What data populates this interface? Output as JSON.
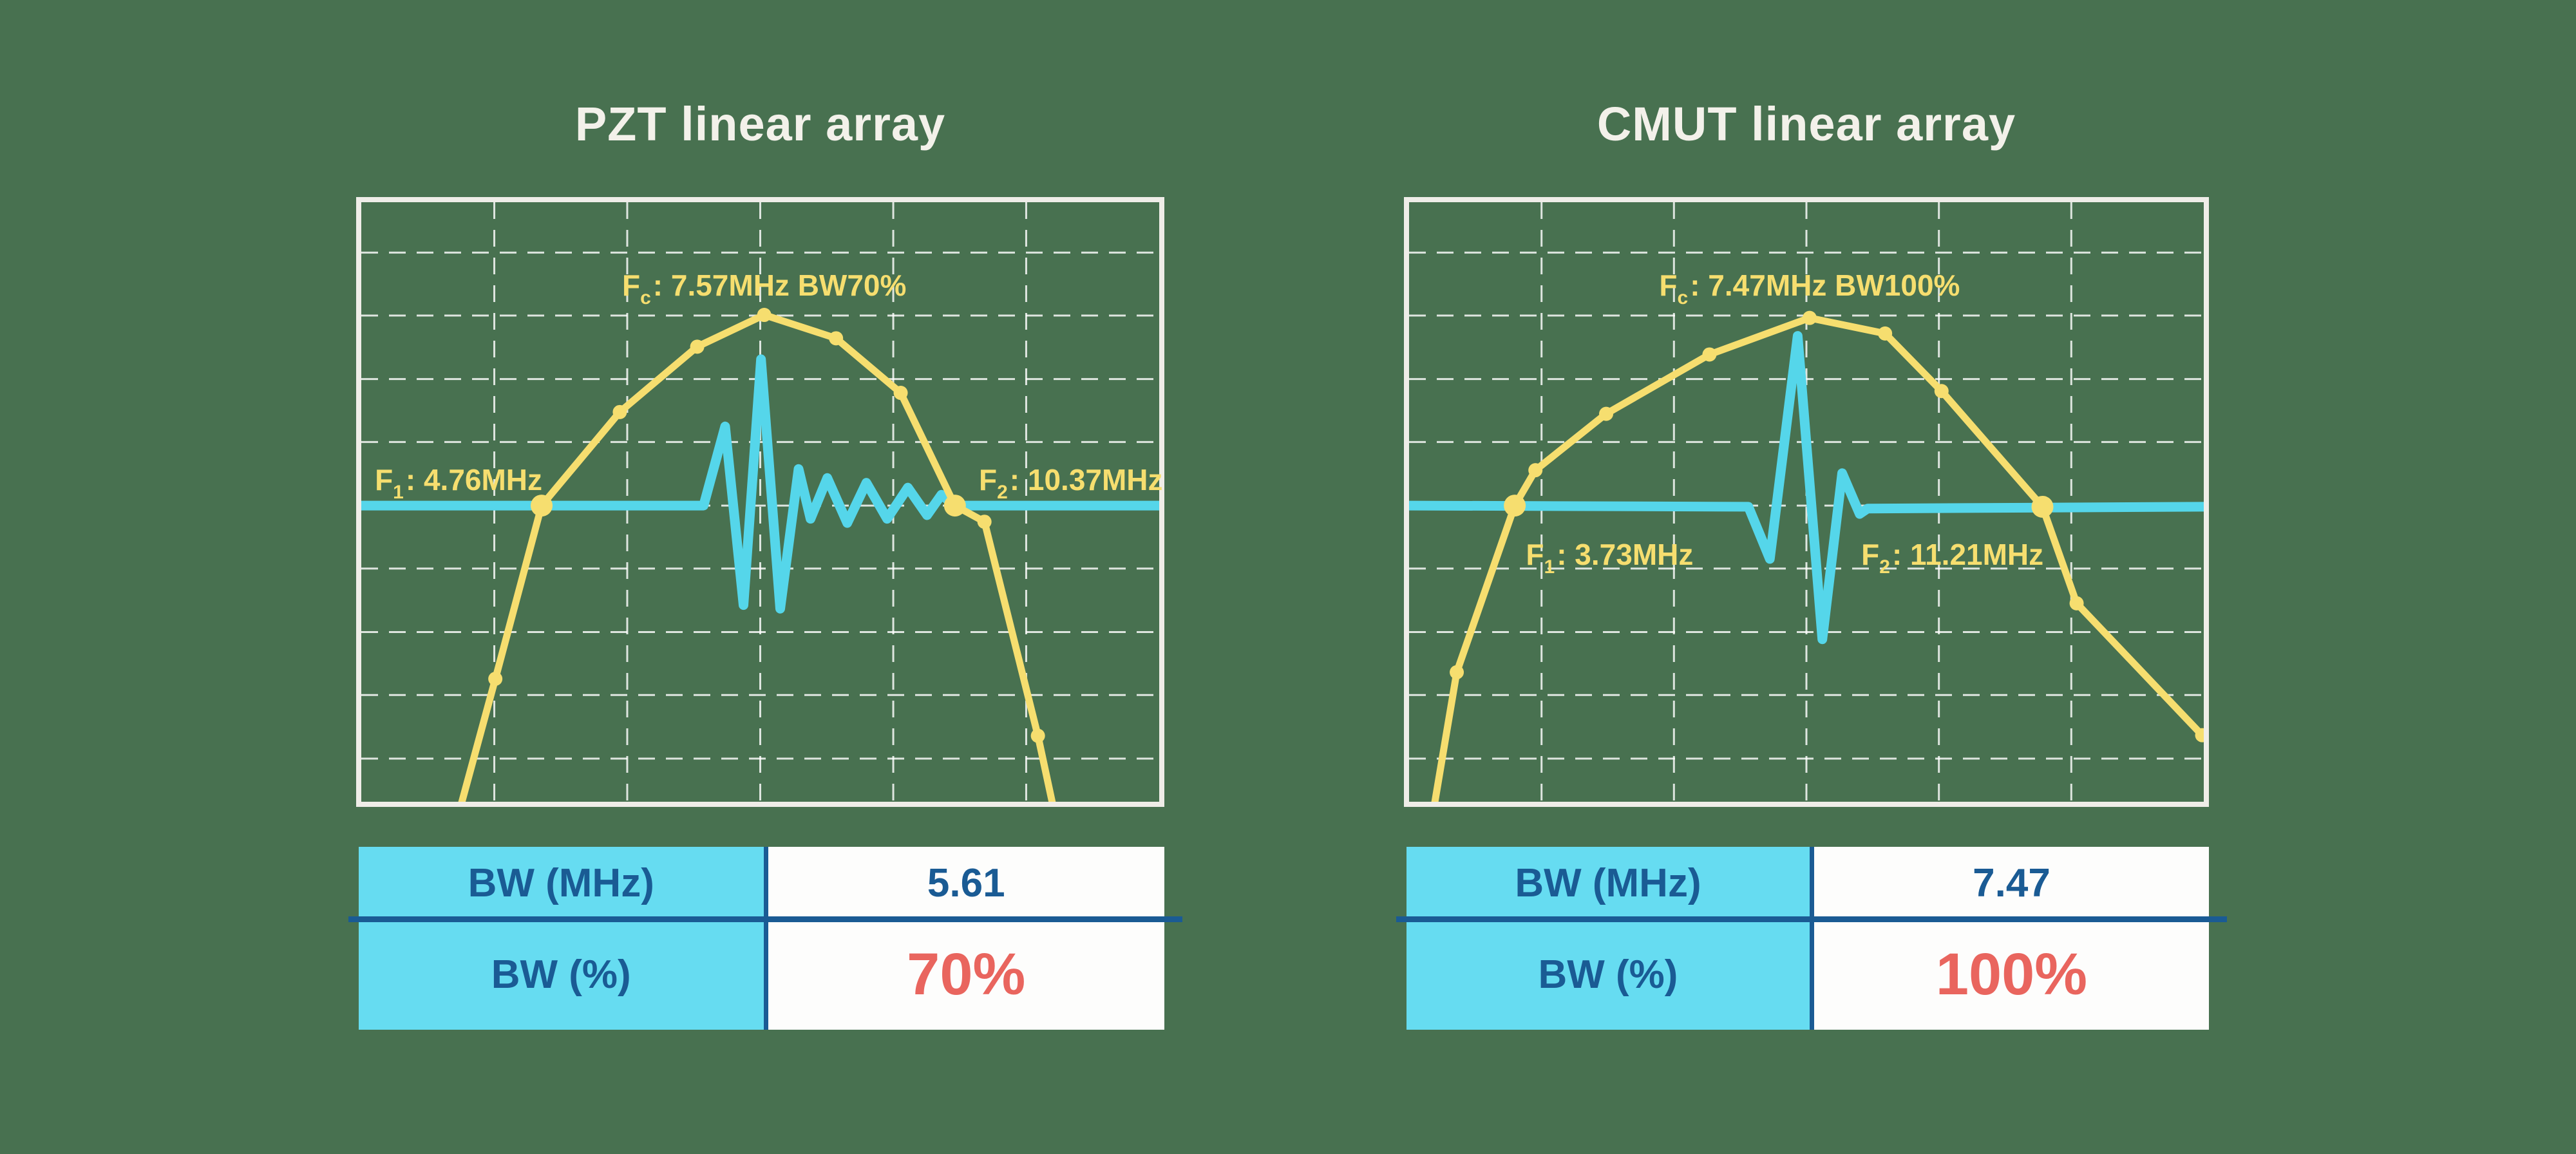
{
  "colors": {
    "background": "#487150",
    "frame_white": "#EFEDE8",
    "grid_white": "rgba(255,255,255,0.82)",
    "spectrum_yellow": "#F6DE6F",
    "pulse_cyan": "#55D6EA",
    "table_header_cyan": "#66DCF1",
    "table_text_blue": "#1A5B94",
    "highlight_red": "#E9655E",
    "title_white": "#F3F1EA"
  },
  "panels": [
    {
      "table": {
        "rows": [
          {
            "label": "BW (MHz)",
            "value": "5.61"
          },
          {
            "label": "BW (%)",
            "value": "70%"
          }
        ]
      }
    },
    {
      "table": {
        "rows": [
          {
            "label": "BW (MHz)",
            "value": "7.47"
          },
          {
            "label": "BW (%)",
            "value": "100%"
          }
        ]
      }
    }
  ],
  "chart_data": [
    {
      "type": "line",
      "title": "PZT linear array",
      "subtitle": "",
      "x_unit": "MHz",
      "ylabel": "relative amplitude (no axis scale shown)",
      "legend_position": "none",
      "grid": {
        "on": true,
        "v_fracs": [
          0.1667,
          0.3333,
          0.5,
          0.6667,
          0.8333
        ],
        "h_fracs": [
          0.084,
          0.189,
          0.295,
          0.4,
          0.506,
          0.611,
          0.717,
          0.822,
          0.928
        ]
      },
      "key_values": {
        "fc_mhz": 7.57,
        "f1_mhz": 4.76,
        "f2_mhz": 10.37,
        "bw_mhz": 5.61,
        "bw_percent": 70
      },
      "baseline_frac": 0.506,
      "spectrum": {
        "name": "frequency spectrum",
        "points": [
          [
            0.122,
            1.02
          ],
          [
            0.168,
            0.795
          ],
          [
            0.226,
            0.506
          ],
          [
            0.324,
            0.35
          ],
          [
            0.421,
            0.241
          ],
          [
            0.505,
            0.188
          ],
          [
            0.595,
            0.227
          ],
          [
            0.676,
            0.318
          ],
          [
            0.744,
            0.506
          ],
          [
            0.781,
            0.533
          ],
          [
            0.848,
            0.89
          ],
          [
            0.869,
            1.02
          ]
        ],
        "markers": [
          [
            0.168,
            0.795,
            0
          ],
          [
            0.226,
            0.506,
            1
          ],
          [
            0.324,
            0.35,
            0
          ],
          [
            0.421,
            0.241,
            0
          ],
          [
            0.505,
            0.188,
            0
          ],
          [
            0.595,
            0.227,
            0
          ],
          [
            0.676,
            0.318,
            0
          ],
          [
            0.744,
            0.506,
            1
          ],
          [
            0.781,
            0.533,
            0
          ],
          [
            0.848,
            0.89,
            0
          ]
        ],
        "marker_freq_mhz_est": [
          4.13,
          4.76,
          5.81,
          6.85,
          7.75,
          8.71,
          9.58,
          10.37,
          10.77,
          11.49
        ]
      },
      "pulse": {
        "name": "pulse-echo waveform",
        "points": [
          [
            0,
            0.506
          ],
          [
            0.429,
            0.506
          ],
          [
            0.456,
            0.374
          ],
          [
            0.479,
            0.672
          ],
          [
            0.501,
            0.262
          ],
          [
            0.525,
            0.678
          ],
          [
            0.548,
            0.445
          ],
          [
            0.563,
            0.528
          ],
          [
            0.584,
            0.46
          ],
          [
            0.609,
            0.535
          ],
          [
            0.633,
            0.468
          ],
          [
            0.659,
            0.528
          ],
          [
            0.685,
            0.476
          ],
          [
            0.709,
            0.522
          ],
          [
            0.727,
            0.488
          ],
          [
            0.744,
            0.506
          ],
          [
            1,
            0.506
          ]
        ]
      },
      "annotations": {
        "fc": {
          "base": "F",
          "sub": "c",
          "text": ": 7.57MHz BW70%",
          "x": 0.505,
          "y": 0.114,
          "align": "center"
        },
        "f1": {
          "base": "F",
          "sub": "1",
          "text": ": 4.76MHz",
          "x": 0.017,
          "y": 0.438,
          "align": "left"
        },
        "f2": {
          "base": "F",
          "sub": "2",
          "text": ": 10.37MHz",
          "x": 0.774,
          "y": 0.438,
          "align": "left"
        }
      }
    },
    {
      "type": "line",
      "title": "CMUT linear array",
      "subtitle": "",
      "x_unit": "MHz",
      "ylabel": "relative amplitude (no axis scale shown)",
      "legend_position": "none",
      "grid": {
        "on": true,
        "v_fracs": [
          0.1667,
          0.3333,
          0.5,
          0.6667,
          0.8333
        ],
        "h_fracs": [
          0.084,
          0.189,
          0.295,
          0.4,
          0.506,
          0.611,
          0.717,
          0.822,
          0.928
        ]
      },
      "key_values": {
        "fc_mhz": 7.47,
        "f1_mhz": 3.73,
        "f2_mhz": 11.21,
        "bw_mhz": 7.47,
        "bw_percent": 100
      },
      "baseline_frac": 0.506,
      "spectrum": {
        "name": "frequency spectrum",
        "points": [
          [
            0.03,
            1.02
          ],
          [
            0.06,
            0.784
          ],
          [
            0.133,
            0.506
          ],
          [
            0.159,
            0.447
          ],
          [
            0.248,
            0.353
          ],
          [
            0.378,
            0.254
          ],
          [
            0.504,
            0.193
          ],
          [
            0.599,
            0.219
          ],
          [
            0.67,
            0.315
          ],
          [
            0.797,
            0.508
          ],
          [
            0.84,
            0.669
          ],
          [
            0.998,
            0.889
          ]
        ],
        "markers": [
          [
            0.06,
            0.784,
            0
          ],
          [
            0.133,
            0.506,
            1
          ],
          [
            0.159,
            0.447,
            0
          ],
          [
            0.248,
            0.353,
            0
          ],
          [
            0.378,
            0.254,
            0
          ],
          [
            0.504,
            0.193,
            0
          ],
          [
            0.599,
            0.219,
            0
          ],
          [
            0.67,
            0.315,
            0
          ],
          [
            0.797,
            0.508,
            1
          ],
          [
            0.84,
            0.669,
            0
          ],
          [
            0.998,
            0.889,
            0
          ]
        ],
        "marker_freq_mhz_est": [
          2.91,
          3.73,
          4.02,
          5.03,
          6.5,
          7.92,
          9.0,
          9.8,
          11.21,
          11.7,
          13.48
        ]
      },
      "pulse": {
        "name": "pulse-echo waveform",
        "points": [
          [
            0,
            0.506
          ],
          [
            0.427,
            0.508
          ],
          [
            0.454,
            0.595
          ],
          [
            0.489,
            0.223
          ],
          [
            0.52,
            0.729
          ],
          [
            0.545,
            0.452
          ],
          [
            0.567,
            0.52
          ],
          [
            0.577,
            0.511
          ],
          [
            1,
            0.508
          ]
        ]
      },
      "annotations": {
        "fc": {
          "base": "F",
          "sub": "c",
          "text": ": 7.47MHz BW100%",
          "x": 0.504,
          "y": 0.114,
          "align": "center"
        },
        "f1": {
          "base": "F",
          "sub": "1",
          "text": ": 3.73MHz",
          "x": 0.147,
          "y": 0.563,
          "align": "left"
        },
        "f2": {
          "base": "F",
          "sub": "2",
          "text": ": 11.21MHz",
          "x": 0.569,
          "y": 0.563,
          "align": "left"
        }
      }
    }
  ]
}
